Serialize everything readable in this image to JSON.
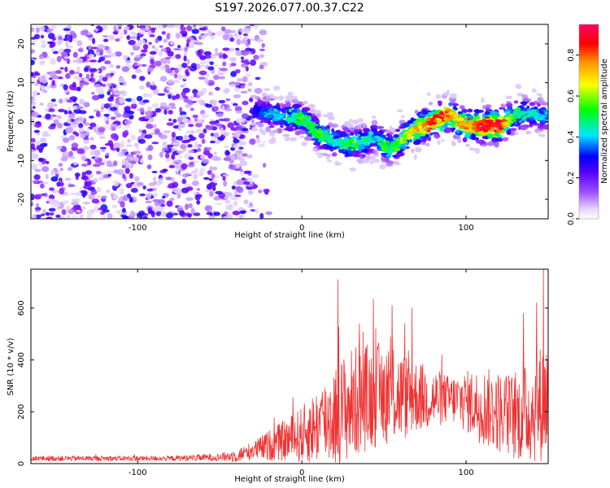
{
  "chart_data": [
    {
      "type": "heatmap",
      "title": "S197.2026.077.00.37.C22",
      "xlabel": "Height of straight line (km)",
      "ylabel": "Frequency (Hz)",
      "xlim": [
        -165,
        150
      ],
      "ylim": [
        -25,
        25
      ],
      "xticks": [
        -100,
        0,
        100
      ],
      "yticks": [
        -20,
        -10,
        0,
        10,
        20
      ],
      "colorbar": {
        "label": "Normalized spectral amplitude",
        "range": [
          0.0,
          0.95
        ],
        "ticks": [
          0.0,
          0.2,
          0.4,
          0.6,
          0.8
        ],
        "colors": [
          "#ffffff",
          "#c9a7ff",
          "#7b00ff",
          "#0000ff",
          "#00e6ff",
          "#00ff00",
          "#ffff00",
          "#ff8800",
          "#ff0000",
          "#ff0066"
        ]
      },
      "noise_region": {
        "x": [
          -165,
          -30
        ],
        "amplitude_range": [
          0.02,
          0.2
        ]
      },
      "trace": {
        "x": [
          -30,
          -20,
          -10,
          0,
          5,
          10,
          20,
          30,
          40,
          45,
          50,
          55,
          60,
          65,
          70,
          80,
          85,
          90,
          95,
          100,
          110,
          120,
          125,
          130,
          140,
          150
        ],
        "frequency": [
          3,
          2,
          1,
          1,
          -1,
          -3,
          -5,
          -6,
          -5,
          -4,
          -6,
          -7,
          -5,
          -3,
          -2,
          0,
          1,
          2,
          0,
          -1,
          -1,
          -1,
          0,
          2,
          2,
          1
        ],
        "amplitude": [
          0.2,
          0.3,
          0.35,
          0.45,
          0.4,
          0.45,
          0.35,
          0.45,
          0.35,
          0.3,
          0.45,
          0.4,
          0.5,
          0.55,
          0.65,
          0.75,
          0.8,
          0.7,
          0.6,
          0.7,
          0.85,
          0.9,
          0.6,
          0.4,
          0.35,
          0.3
        ]
      }
    },
    {
      "type": "line",
      "title": "",
      "xlabel": "Height of straight line (km)",
      "ylabel": "SNR (10 * v/v)",
      "xlim": [
        -165,
        150
      ],
      "ylim": [
        0,
        750
      ],
      "xticks": [
        -100,
        0,
        100
      ],
      "yticks": [
        0,
        200,
        400,
        600
      ],
      "line_color": "#ee3333",
      "envelope": {
        "x": [
          -165,
          -120,
          -80,
          -50,
          -40,
          -30,
          -20,
          -10,
          0,
          10,
          20,
          30,
          40,
          50,
          60,
          70,
          80,
          90,
          100,
          110,
          120,
          130,
          140,
          150
        ],
        "mean": [
          20,
          20,
          20,
          25,
          30,
          50,
          70,
          90,
          110,
          150,
          190,
          230,
          260,
          270,
          260,
          260,
          250,
          250,
          240,
          220,
          200,
          180,
          200,
          260
        ],
        "amp": [
          10,
          10,
          10,
          15,
          25,
          35,
          60,
          80,
          110,
          150,
          200,
          220,
          210,
          200,
          180,
          140,
          120,
          90,
          120,
          150,
          160,
          170,
          200,
          250
        ]
      },
      "peaks": [
        {
          "x": 22,
          "y": 710
        },
        {
          "x": 35,
          "y": 540
        },
        {
          "x": 45,
          "y": 520
        },
        {
          "x": 55,
          "y": 610
        },
        {
          "x": 67,
          "y": 600
        },
        {
          "x": 135,
          "y": 580
        },
        {
          "x": 147,
          "y": 750
        },
        {
          "x": 143,
          "y": 620
        }
      ]
    }
  ]
}
